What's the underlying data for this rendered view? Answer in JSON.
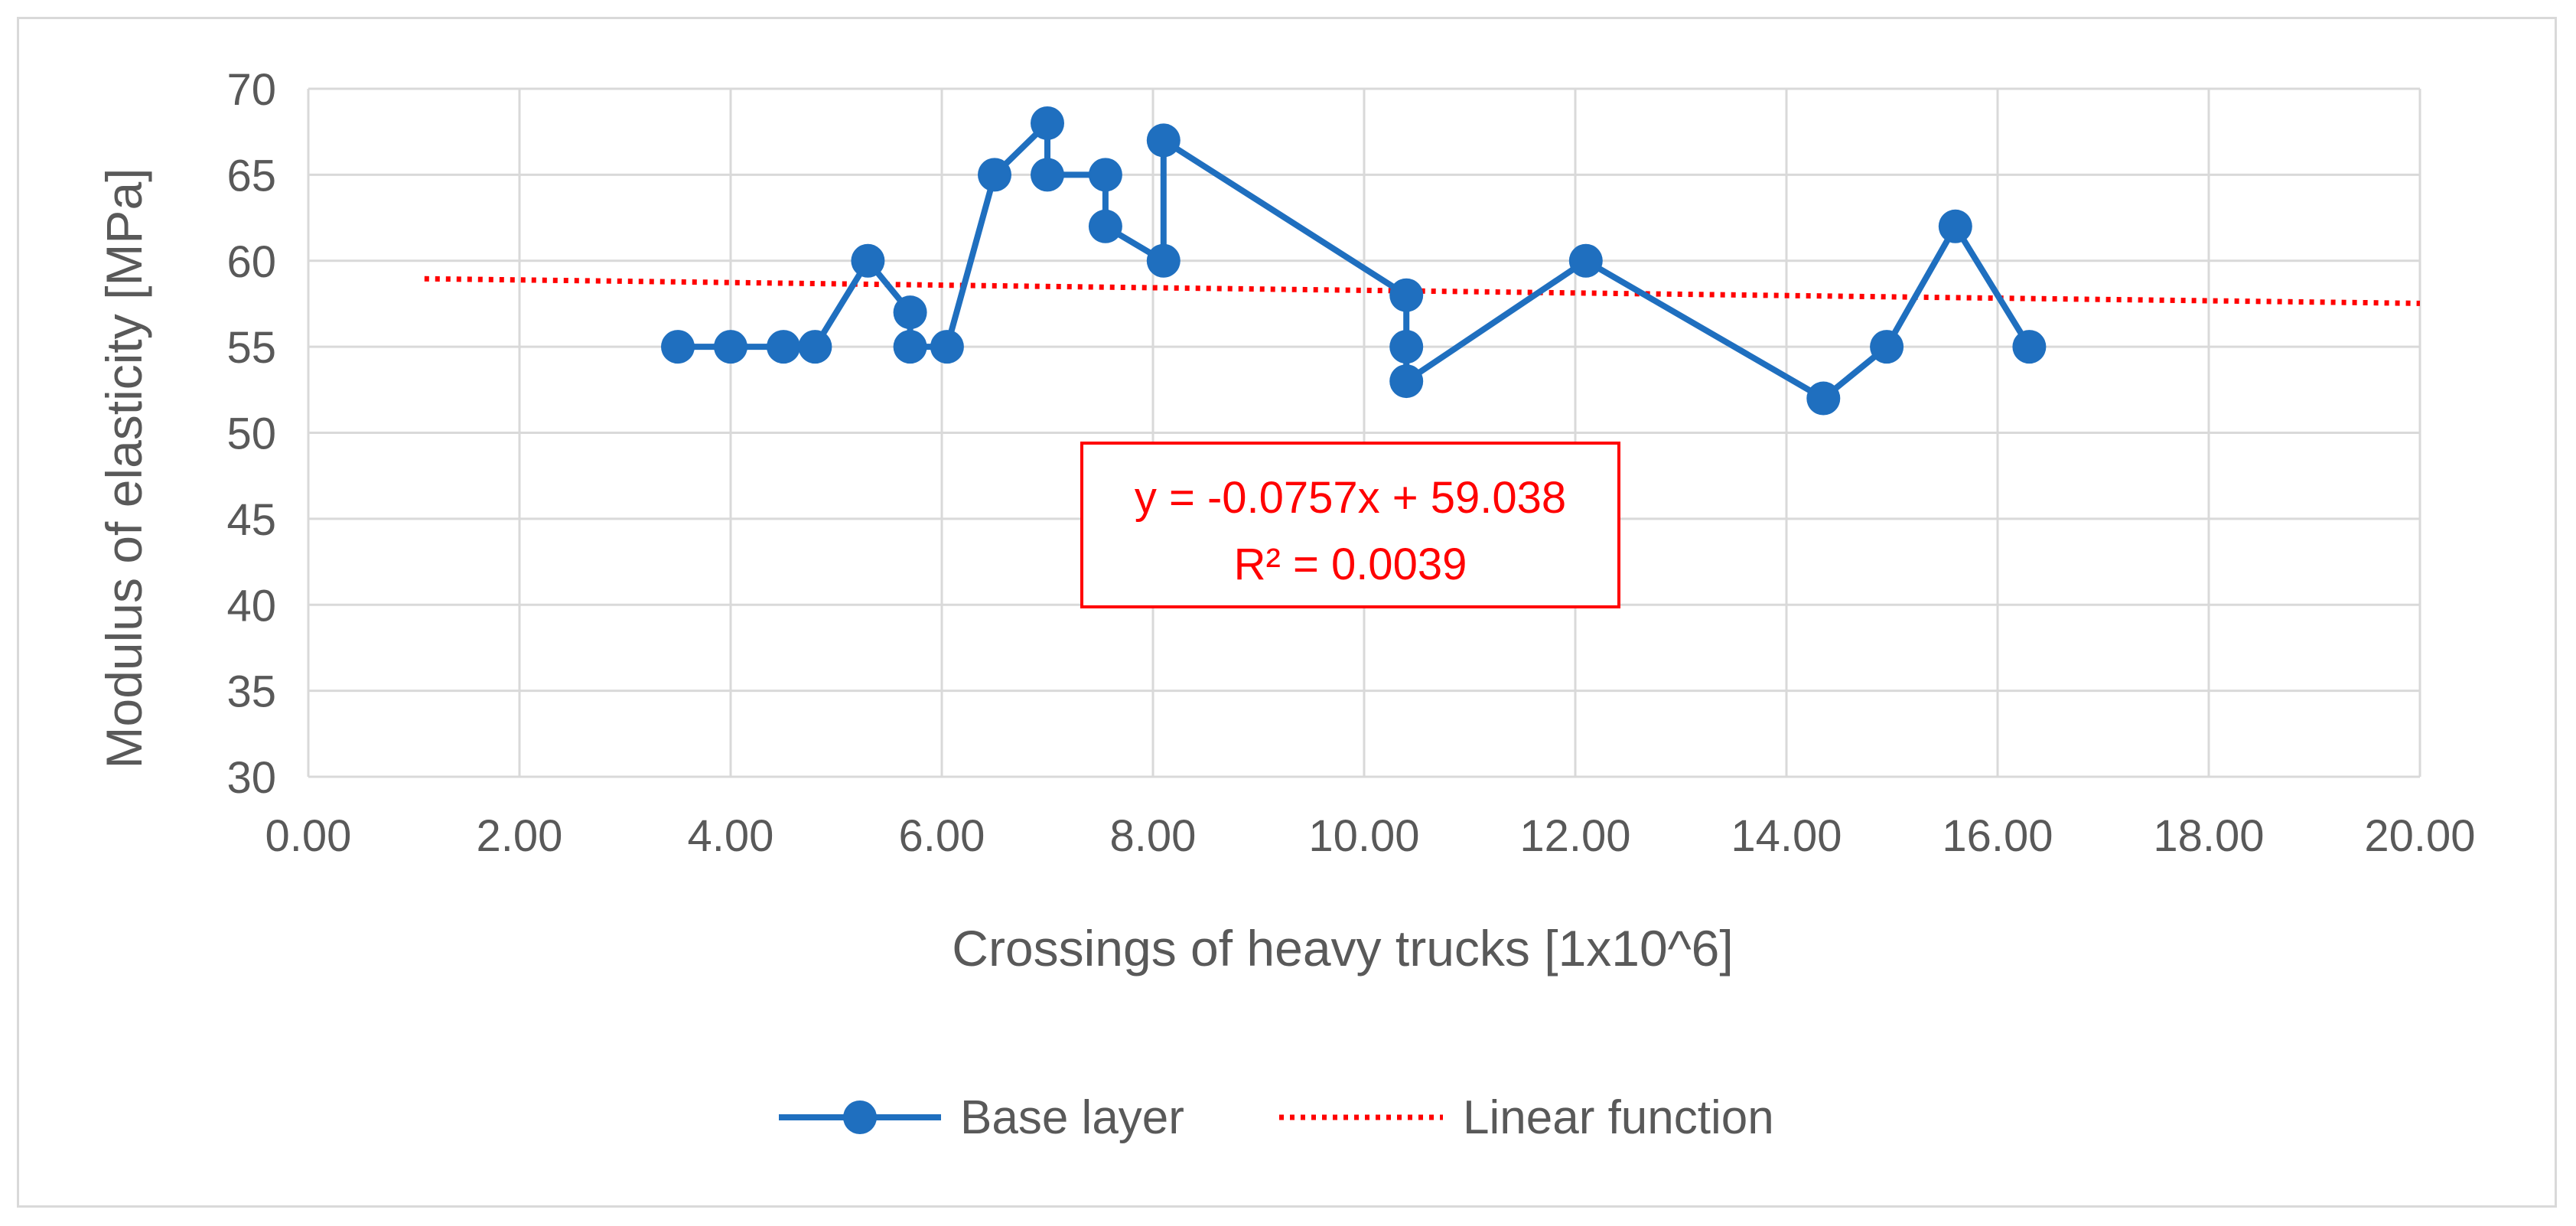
{
  "chart_data": {
    "type": "line",
    "title": "",
    "xlabel": "Crossings of heavy trucks [1x10^6]",
    "ylabel": "Modulus of elasticity [MPa]",
    "xlim": [
      0,
      20
    ],
    "ylim": [
      30,
      70
    ],
    "x_ticks": [
      "0.00",
      "2.00",
      "4.00",
      "6.00",
      "8.00",
      "10.00",
      "12.00",
      "14.00",
      "16.00",
      "18.00",
      "20.00"
    ],
    "y_ticks": [
      "30",
      "35",
      "40",
      "45",
      "50",
      "55",
      "60",
      "65",
      "70"
    ],
    "grid": true,
    "legend_position": "bottom",
    "series": [
      {
        "name": "Base layer",
        "color": "#1f6fbf",
        "marker": "circle",
        "points": [
          [
            3.5,
            55
          ],
          [
            4.0,
            55
          ],
          [
            4.5,
            55
          ],
          [
            4.8,
            55
          ],
          [
            5.3,
            60
          ],
          [
            5.7,
            57
          ],
          [
            5.7,
            55
          ],
          [
            6.05,
            55
          ],
          [
            6.5,
            65
          ],
          [
            7.0,
            68
          ],
          [
            7.0,
            65
          ],
          [
            7.55,
            65
          ],
          [
            7.55,
            62
          ],
          [
            8.1,
            60
          ],
          [
            8.1,
            67
          ],
          [
            10.4,
            58
          ],
          [
            10.4,
            55
          ],
          [
            10.4,
            53
          ],
          [
            12.1,
            60
          ],
          [
            14.35,
            52
          ],
          [
            14.95,
            55
          ],
          [
            15.6,
            62
          ],
          [
            16.3,
            55
          ]
        ]
      },
      {
        "name": "Linear function",
        "color": "#ff0000",
        "style": "dotted",
        "slope": -0.0757,
        "intercept": 59.038,
        "x_range": [
          1.1,
          20
        ]
      }
    ],
    "annotation": {
      "equation": "y = -0.0757x + 59.038",
      "r_squared": "R² = 0.0039",
      "color": "#ff0000"
    }
  }
}
